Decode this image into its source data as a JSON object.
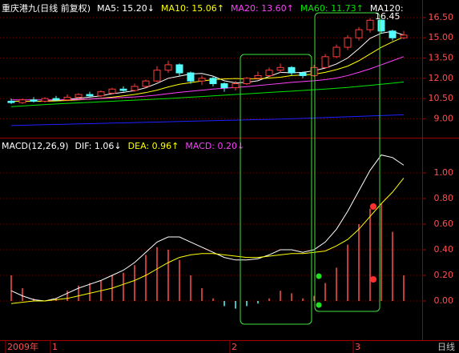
{
  "chart_data": [
    {
      "type": "candlestick",
      "title": "重庆港九(日线 前复权)",
      "categories": [
        "2009年",
        null,
        null,
        null,
        "1",
        null,
        null,
        null,
        null,
        null,
        null,
        null,
        null,
        null,
        null,
        null,
        null,
        null,
        null,
        null,
        "2",
        null,
        null,
        null,
        null,
        null,
        null,
        null,
        null,
        null,
        null,
        "3",
        null,
        null,
        null,
        null
      ],
      "open": [
        10.3,
        10.2,
        10.4,
        10.3,
        10.5,
        10.4,
        10.6,
        10.8,
        10.7,
        10.9,
        11.2,
        11.1,
        11.4,
        11.8,
        12.6,
        13.0,
        12.4,
        11.8,
        12.0,
        11.6,
        11.3,
        11.6,
        12.0,
        12.2,
        12.6,
        12.8,
        12.4,
        12.2,
        12.8,
        13.6,
        14.3,
        15.0,
        15.6,
        16.3,
        15.5,
        15.0
      ],
      "high": [
        10.5,
        10.5,
        10.6,
        10.6,
        10.7,
        10.8,
        10.9,
        11.0,
        11.1,
        11.3,
        11.4,
        11.6,
        11.9,
        12.9,
        13.3,
        13.1,
        12.5,
        12.2,
        12.1,
        11.7,
        11.8,
        12.1,
        12.5,
        12.8,
        13.1,
        12.9,
        12.5,
        13.0,
        13.8,
        14.5,
        15.2,
        15.8,
        16.45,
        16.4,
        15.6,
        15.5
      ],
      "low": [
        10.1,
        10.1,
        10.2,
        10.2,
        10.3,
        10.3,
        10.5,
        10.6,
        10.6,
        10.8,
        11.0,
        11.0,
        11.3,
        11.7,
        12.4,
        12.2,
        11.6,
        11.5,
        11.4,
        11.0,
        11.1,
        11.5,
        11.9,
        12.1,
        12.4,
        12.2,
        12.0,
        12.1,
        12.7,
        13.5,
        14.1,
        14.8,
        15.4,
        15.3,
        14.8,
        14.9
      ],
      "close": [
        10.2,
        10.4,
        10.3,
        10.5,
        10.4,
        10.6,
        10.8,
        10.7,
        11.0,
        11.2,
        11.1,
        11.4,
        11.8,
        12.6,
        13.0,
        12.4,
        11.8,
        12.0,
        11.6,
        11.3,
        11.6,
        12.0,
        12.2,
        12.6,
        12.8,
        12.4,
        12.2,
        12.8,
        13.6,
        14.3,
        15.0,
        15.6,
        16.3,
        15.5,
        15.0,
        15.2
      ],
      "up_color": "#ff3c3c",
      "down_color": "#54ffff",
      "annotation": "16.45",
      "series": [
        {
          "name": "MA5: 15.20↓",
          "color": "#ffffff",
          "values": [
            10.3,
            10.3,
            10.3,
            10.3,
            10.36,
            10.44,
            10.52,
            10.6,
            10.7,
            10.86,
            10.96,
            11.08,
            11.3,
            11.62,
            12.0,
            12.16,
            12.32,
            12.36,
            12.16,
            11.82,
            11.66,
            11.7,
            11.82,
            12.14,
            12.44,
            12.4,
            12.44,
            12.56,
            12.76,
            13.06,
            13.5,
            14.2,
            14.96,
            15.34,
            15.48,
            15.2
          ]
        },
        {
          "name": "MA10: 15.06↑",
          "color": "#ffff00",
          "values": [
            10.3,
            10.3,
            10.3,
            10.3,
            10.32,
            10.36,
            10.4,
            10.46,
            10.52,
            10.6,
            10.7,
            10.8,
            10.94,
            11.12,
            11.36,
            11.56,
            11.68,
            11.8,
            11.9,
            11.95,
            11.98,
            11.95,
            11.96,
            12.02,
            12.08,
            12.2,
            12.24,
            12.3,
            12.44,
            12.64,
            12.9,
            13.3,
            13.8,
            14.3,
            14.7,
            15.06
          ]
        },
        {
          "name": "MA20: 13.60↑",
          "color": "#ff40ff",
          "values": [
            10.4,
            10.4,
            10.4,
            10.4,
            10.4,
            10.42,
            10.44,
            10.46,
            10.5,
            10.54,
            10.58,
            10.62,
            10.68,
            10.76,
            10.86,
            10.96,
            11.04,
            11.12,
            11.2,
            11.26,
            11.32,
            11.38,
            11.46,
            11.54,
            11.62,
            11.7,
            11.76,
            11.82,
            11.9,
            12.02,
            12.2,
            12.44,
            12.7,
            13.0,
            13.3,
            13.6
          ]
        },
        {
          "name": "MA60: 11.73↑",
          "color": "#00e600",
          "values": [
            9.9,
            9.95,
            10.0,
            10.05,
            10.1,
            10.14,
            10.18,
            10.22,
            10.26,
            10.3,
            10.34,
            10.38,
            10.42,
            10.46,
            10.5,
            10.55,
            10.6,
            10.65,
            10.7,
            10.75,
            10.8,
            10.85,
            10.9,
            10.95,
            11.0,
            11.05,
            11.1,
            11.15,
            11.2,
            11.26,
            11.32,
            11.4,
            11.48,
            11.56,
            11.64,
            11.73
          ]
        },
        {
          "name": "MA120:",
          "color": "#2020ff",
          "values": [
            8.5,
            8.52,
            8.54,
            8.56,
            8.58,
            8.6,
            8.62,
            8.64,
            8.66,
            8.68,
            8.7,
            8.72,
            8.74,
            8.76,
            8.78,
            8.8,
            8.82,
            8.84,
            8.86,
            8.88,
            8.9,
            8.92,
            8.94,
            8.96,
            8.98,
            9.0,
            9.03,
            9.06,
            9.09,
            9.12,
            9.15,
            9.18,
            9.21,
            9.24,
            9.27,
            9.3
          ]
        }
      ],
      "ylim": [
        7.6,
        17.8
      ],
      "yticks": [
        {
          "value": 9,
          "label": "9.00"
        },
        {
          "value": 10.5,
          "label": "10.50"
        },
        {
          "value": 12,
          "label": "12.00"
        },
        {
          "value": 13.5,
          "label": "13.50"
        },
        {
          "value": 15,
          "label": "15.00"
        },
        {
          "value": 16.5,
          "label": "16.50"
        }
      ],
      "grid": true,
      "period_label": "日线"
    },
    {
      "type": "macd",
      "title": "MACD(12,26,9)",
      "series": [
        {
          "name": "DIF: 1.06↓",
          "color": "#ffffff",
          "values": [
            0.08,
            0.04,
            0.01,
            0.0,
            0.02,
            0.06,
            0.1,
            0.13,
            0.16,
            0.2,
            0.24,
            0.3,
            0.38,
            0.46,
            0.5,
            0.5,
            0.46,
            0.42,
            0.38,
            0.34,
            0.32,
            0.32,
            0.33,
            0.36,
            0.4,
            0.4,
            0.38,
            0.4,
            0.46,
            0.56,
            0.7,
            0.86,
            1.02,
            1.14,
            1.12,
            1.06
          ]
        },
        {
          "name": "DEA: 0.96↑",
          "color": "#ffff00",
          "values": [
            -0.02,
            -0.01,
            0.0,
            0.0,
            0.01,
            0.02,
            0.04,
            0.06,
            0.08,
            0.1,
            0.13,
            0.16,
            0.2,
            0.25,
            0.3,
            0.34,
            0.36,
            0.37,
            0.37,
            0.36,
            0.35,
            0.34,
            0.34,
            0.35,
            0.36,
            0.37,
            0.37,
            0.38,
            0.39,
            0.43,
            0.48,
            0.56,
            0.66,
            0.76,
            0.85,
            0.96
          ]
        }
      ],
      "bars": {
        "name": "MACD: 0.20↓",
        "color": "#ff40ff",
        "up_color": "#ff5050",
        "down_color": "#54ffff",
        "values": [
          0.2,
          0.1,
          0.02,
          0,
          0.02,
          0.08,
          0.12,
          0.14,
          0.16,
          0.2,
          0.22,
          0.28,
          0.36,
          0.42,
          0.4,
          0.32,
          0.2,
          0.1,
          0.02,
          -0.04,
          -0.06,
          -0.04,
          -0.02,
          0.02,
          0.08,
          0.06,
          0.02,
          0.04,
          0.14,
          0.26,
          0.44,
          0.6,
          0.72,
          0.76,
          0.54,
          0.2
        ]
      },
      "ylim": [
        -0.3,
        1.25
      ],
      "yticks": [
        {
          "value": 0,
          "label": "0.00"
        },
        {
          "value": 0.2,
          "label": "0.20"
        },
        {
          "value": 0.4,
          "label": "0.40"
        },
        {
          "value": 0.6,
          "label": "0.60"
        },
        {
          "value": 0.8,
          "label": "0.80"
        },
        {
          "value": 1,
          "label": "1.00"
        }
      ],
      "grid": true
    }
  ]
}
